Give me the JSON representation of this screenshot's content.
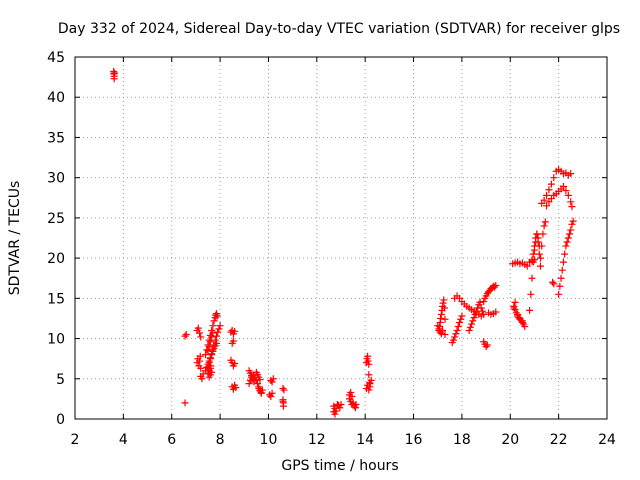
{
  "chart_data": {
    "type": "scatter",
    "title": "Day 332 of 2024, Sidereal Day-to-day VTEC variation (SDTVAR) for receiver glps",
    "xlabel": "GPS time / hours",
    "ylabel": "SDTVAR / TECUs",
    "xlim": [
      2,
      24
    ],
    "ylim": [
      0,
      45
    ],
    "xticks": [
      "2",
      "4",
      "6",
      "8",
      "10",
      "12",
      "14",
      "16",
      "18",
      "20",
      "22",
      "24"
    ],
    "yticks": [
      "0",
      "5",
      "10",
      "15",
      "20",
      "25",
      "30",
      "35",
      "40",
      "45"
    ],
    "grid": true,
    "legend": "none",
    "series": [
      {
        "name": "SDTVAR",
        "color": "#ff0000",
        "marker": "plus",
        "x": [
          3.6,
          3.6,
          3.62,
          3.62,
          3.64,
          6.55,
          6.6,
          6.55,
          7.05,
          7.08,
          7.12,
          7.15,
          7.18,
          7.2,
          7.05,
          7.1,
          7.15,
          7.2,
          7.2,
          7.25,
          7.3,
          7.4,
          7.45,
          7.5,
          7.55,
          7.6,
          7.65,
          7.7,
          7.75,
          7.8,
          7.82,
          7.85,
          7.88,
          7.4,
          7.45,
          7.5,
          7.55,
          7.6,
          7.65,
          7.7,
          7.75,
          7.8,
          7.85,
          7.55,
          7.6,
          7.65,
          7.5,
          7.55,
          7.6,
          7.65,
          7.7,
          7.75,
          7.8,
          7.85,
          7.9,
          7.95,
          8.0,
          7.5,
          7.55,
          7.6,
          7.62,
          7.5,
          7.55,
          7.6,
          7.65,
          7.7,
          8.45,
          8.5,
          8.55,
          8.6,
          8.5,
          8.55,
          8.45,
          8.5,
          8.55,
          8.6,
          8.5,
          8.55,
          8.6,
          8.65,
          9.2,
          9.25,
          9.3,
          9.35,
          9.4,
          9.2,
          9.25,
          9.3,
          9.4,
          9.45,
          9.5,
          9.55,
          9.6,
          9.65,
          9.7,
          9.75,
          9.5,
          9.55,
          9.6,
          9.65,
          9.6,
          9.65,
          9.7,
          10.1,
          10.15,
          10.2,
          10.05,
          10.1,
          10.15,
          10.6,
          10.6,
          10.62,
          10.62,
          10.64,
          10.6,
          12.7,
          12.75,
          12.8,
          12.85,
          12.7,
          12.75,
          12.9,
          12.95,
          13.0,
          13.35,
          13.4,
          13.45,
          13.5,
          13.55,
          13.6,
          13.62,
          13.35,
          13.4,
          13.45,
          14.05,
          14.07,
          14.1,
          14.12,
          14.15,
          14.18,
          14.2,
          14.05,
          14.1,
          14.15,
          14.2,
          14.25,
          14.15,
          17.05,
          17.08,
          17.1,
          17.12,
          17.15,
          17.18,
          17.2,
          17.22,
          17.25,
          17.28,
          17.3,
          17.0,
          17.05,
          17.1,
          17.15,
          17.2,
          17.3,
          17.6,
          17.65,
          17.7,
          17.75,
          17.8,
          17.85,
          17.9,
          17.95,
          18.0,
          17.7,
          17.8,
          17.9,
          18.0,
          18.1,
          18.2,
          18.3,
          18.4,
          18.5,
          18.6,
          18.7,
          18.8,
          18.3,
          18.35,
          18.4,
          18.45,
          18.5,
          18.55,
          18.6,
          18.65,
          18.7,
          18.75,
          18.8,
          18.85,
          18.9,
          18.9,
          18.95,
          19.0,
          19.05,
          19.1,
          19.15,
          19.2,
          19.25,
          19.3,
          19.35,
          19.4,
          19.1,
          19.2,
          19.3,
          19.4,
          18.9,
          18.95,
          19.0,
          19.05,
          20.15,
          20.2,
          20.25,
          20.3,
          20.35,
          20.4,
          20.45,
          20.5,
          20.55,
          20.6,
          20.15,
          20.2,
          20.3,
          20.4,
          20.5,
          20.1,
          20.2,
          20.3,
          20.4,
          20.5,
          20.6,
          20.7,
          20.8,
          20.9,
          21.0,
          20.8,
          20.85,
          20.9,
          20.95,
          21.0,
          21.05,
          21.1,
          21.15,
          21.2,
          21.25,
          21.3,
          21.35,
          21.4,
          21.45,
          20.9,
          20.95,
          21.0,
          21.05,
          21.1,
          21.15,
          21.2,
          21.25,
          21.3,
          21.4,
          21.5,
          21.6,
          21.7,
          21.8,
          21.9,
          22.0,
          22.1,
          22.2,
          22.3,
          22.4,
          22.5,
          21.5,
          21.6,
          21.7,
          21.8,
          21.9,
          22.0,
          22.1,
          22.2,
          22.3,
          22.4,
          22.5,
          22.55,
          21.75,
          21.8,
          22.0,
          22.05,
          22.1,
          22.15,
          22.2,
          22.25,
          22.3,
          22.35,
          22.4,
          22.45,
          22.5,
          22.55,
          22.6
        ],
        "y": [
          43.2,
          42.9,
          42.6,
          42.3,
          43.0,
          10.3,
          10.5,
          2.0,
          7.0,
          7.5,
          6.6,
          7.2,
          7.8,
          6.3,
          11.0,
          11.3,
          10.7,
          10.2,
          5.3,
          5.0,
          5.6,
          8.0,
          8.6,
          9.2,
          9.8,
          10.4,
          11.0,
          11.6,
          12.2,
          12.6,
          12.9,
          13.1,
          12.8,
          6.0,
          6.4,
          6.8,
          7.2,
          7.6,
          8.0,
          8.4,
          8.8,
          9.1,
          9.4,
          5.2,
          5.5,
          5.8,
          6.5,
          7.0,
          7.5,
          8.1,
          8.6,
          9.2,
          9.8,
          10.3,
          10.8,
          11.2,
          11.6,
          5.7,
          6.0,
          6.3,
          6.6,
          8.5,
          9.0,
          9.6,
          10.2,
          10.7,
          10.8,
          11.0,
          10.6,
          10.9,
          9.4,
          9.7,
          7.3,
          7.0,
          6.6,
          6.9,
          4.0,
          3.7,
          4.2,
          3.9,
          6.0,
          5.7,
          5.4,
          5.0,
          4.6,
          4.4,
          4.8,
          5.2,
          5.5,
          5.2,
          4.8,
          4.4,
          4.0,
          3.6,
          3.3,
          3.6,
          5.8,
          5.5,
          5.2,
          4.9,
          3.8,
          3.5,
          3.2,
          4.8,
          4.6,
          5.0,
          3.0,
          2.8,
          3.2,
          3.8,
          2.4,
          2.0,
          1.6,
          3.6,
          2.2,
          1.6,
          1.3,
          1.0,
          1.8,
          0.9,
          0.6,
          1.7,
          1.4,
          1.8,
          3.0,
          3.3,
          2.8,
          2.0,
          1.6,
          1.4,
          1.8,
          2.5,
          2.2,
          1.8,
          7.0,
          7.5,
          7.8,
          7.2,
          6.8,
          4.5,
          4.0,
          3.8,
          4.2,
          3.6,
          4.4,
          4.8,
          5.5,
          11.0,
          11.5,
          12.0,
          12.5,
          13.0,
          13.5,
          14.0,
          14.4,
          14.8,
          13.8,
          12.4,
          11.6,
          11.2,
          10.8,
          10.6,
          11.0,
          10.5,
          9.5,
          9.8,
          10.2,
          10.6,
          11.0,
          11.5,
          12.0,
          12.4,
          12.8,
          15.0,
          15.3,
          15.0,
          14.6,
          14.3,
          14.0,
          13.8,
          13.6,
          13.4,
          13.2,
          13.0,
          12.8,
          11.0,
          11.4,
          11.8,
          12.2,
          12.6,
          13.0,
          13.4,
          13.8,
          14.2,
          14.5,
          13.8,
          13.4,
          13.0,
          14.6,
          15.0,
          15.3,
          15.6,
          15.8,
          16.0,
          16.2,
          16.3,
          16.5,
          16.4,
          16.6,
          13.2,
          13.0,
          13.1,
          13.3,
          9.6,
          9.3,
          9.0,
          9.2,
          14.0,
          13.6,
          13.2,
          12.8,
          12.6,
          12.4,
          12.2,
          12.0,
          11.8,
          11.5,
          13.8,
          14.5,
          13.0,
          12.5,
          12.2,
          19.3,
          19.4,
          19.5,
          19.3,
          19.4,
          19.2,
          19.0,
          19.5,
          19.6,
          19.8,
          13.5,
          15.5,
          17.5,
          19.5,
          21.0,
          22.0,
          23.0,
          22.5,
          21.5,
          20.0,
          21.5,
          23.0,
          24.0,
          24.5,
          19.8,
          20.5,
          21.5,
          22.5,
          23.0,
          22.0,
          20.5,
          19.0,
          26.8,
          27.2,
          27.8,
          28.5,
          29.2,
          30.0,
          30.8,
          31.0,
          30.8,
          30.5,
          30.6,
          30.3,
          30.5,
          26.5,
          27.0,
          27.4,
          27.8,
          28.0,
          28.3,
          28.6,
          28.9,
          28.4,
          27.8,
          27.0,
          26.4,
          17.0,
          16.8,
          15.5,
          16.5,
          17.5,
          18.5,
          19.5,
          20.5,
          21.5,
          22.0,
          22.5,
          23.0,
          23.5,
          24.2,
          24.6
        ]
      }
    ]
  }
}
